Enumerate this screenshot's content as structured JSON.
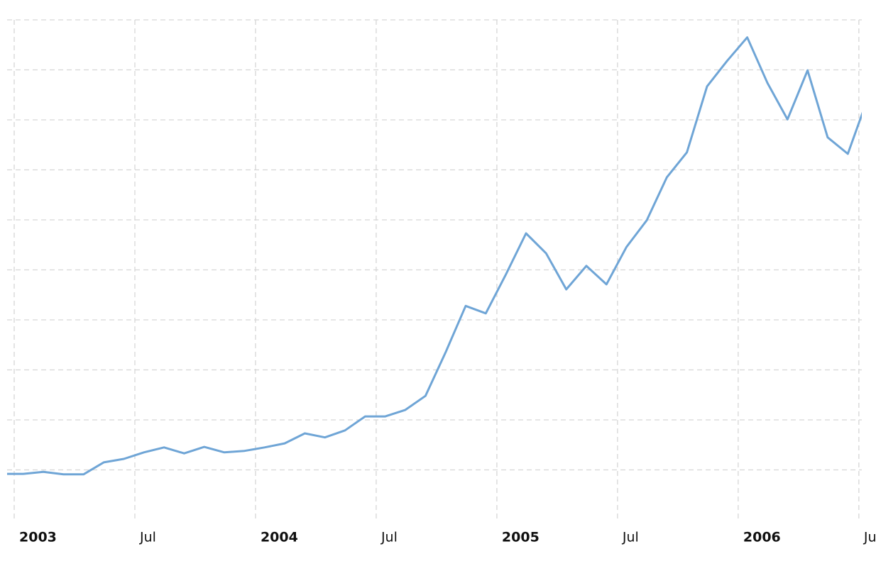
{
  "chart_data": {
    "type": "line",
    "x": [
      "2002-12",
      "2003-01",
      "2003-02",
      "2003-03",
      "2003-04",
      "2003-05",
      "2003-06",
      "2003-07",
      "2003-08",
      "2003-09",
      "2003-10",
      "2003-11",
      "2003-12",
      "2004-01",
      "2004-02",
      "2004-03",
      "2004-04",
      "2004-05",
      "2004-06",
      "2004-07",
      "2004-08",
      "2004-09",
      "2004-10",
      "2004-11",
      "2004-12",
      "2005-01",
      "2005-02",
      "2005-03",
      "2005-04",
      "2005-05",
      "2005-06",
      "2005-07",
      "2005-08",
      "2005-09",
      "2005-10",
      "2005-11",
      "2005-12",
      "2006-01",
      "2006-02",
      "2006-03",
      "2006-04",
      "2006-05",
      "2006-06",
      "2006-07"
    ],
    "series": [
      {
        "color": "#6fa5d6",
        "values": [
          0.92,
          0.92,
          0.96,
          0.91,
          0.91,
          1.15,
          1.22,
          1.35,
          1.45,
          1.33,
          1.46,
          1.35,
          1.38,
          1.45,
          1.53,
          1.73,
          1.65,
          1.79,
          2.07,
          2.07,
          2.2,
          2.48,
          3.35,
          4.28,
          4.13,
          4.91,
          5.73,
          5.33,
          4.61,
          5.08,
          4.71,
          5.46,
          5.99,
          6.85,
          7.35,
          8.67,
          9.18,
          9.65,
          8.74,
          8.01,
          8.99,
          7.65,
          7.32,
          8.44
        ]
      }
    ],
    "xticks": [
      {
        "value": "2003-01",
        "label": "2003"
      },
      {
        "value": "2003-07",
        "label": "Jul"
      },
      {
        "value": "2004-01",
        "label": "2004"
      },
      {
        "value": "2004-07",
        "label": "Jul"
      },
      {
        "value": "2005-01",
        "label": "2005"
      },
      {
        "value": "2005-07",
        "label": "Jul"
      },
      {
        "value": "2006-01",
        "label": "2006"
      },
      {
        "value": "2006-07",
        "label": "Jul"
      }
    ],
    "ylim": [
      0,
      10
    ],
    "yticks": [
      1,
      2,
      3,
      4,
      5,
      6,
      7,
      8,
      9,
      10
    ],
    "grid": true
  }
}
